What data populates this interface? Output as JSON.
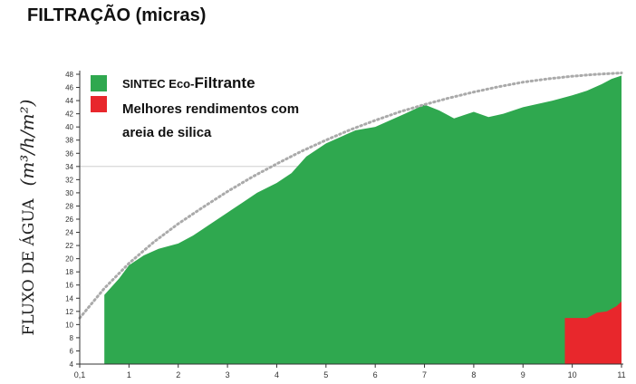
{
  "chart_data": {
    "type": "area",
    "title": "FILTRAÇÃO (micras)",
    "ylabel_prefix": "FLUXO DE ÁGUA",
    "ylabel_unit": "(m³/h/m²)",
    "x_ticks": [
      "0,1",
      "1",
      "2",
      "3",
      "4",
      "5",
      "6",
      "7",
      "8",
      "9",
      "10",
      "11"
    ],
    "y_ticks": [
      "4",
      "6",
      "8",
      "10",
      "12",
      "14",
      "16",
      "18",
      "20",
      "22",
      "24",
      "26",
      "28",
      "30",
      "32",
      "34",
      "36",
      "38",
      "40",
      "42",
      "44",
      "46",
      "48"
    ],
    "xlim": [
      0,
      11
    ],
    "ylim": [
      4,
      48
    ],
    "legend": [
      {
        "label_small": "SINTEC Eco-",
        "label_big": "Filtrante",
        "color": "#2fa84f"
      },
      {
        "label_line1": "Melhores rendimentos com",
        "label_line2": "areia de silica",
        "color": "#e8272c"
      }
    ],
    "series": [
      {
        "name": "SINTEC Eco-Filtrante",
        "color": "#2fa84f",
        "x": [
          0.5,
          0.8,
          1,
          1.3,
          1.6,
          2,
          2.3,
          2.6,
          3,
          3.3,
          3.6,
          4,
          4.3,
          4.6,
          5,
          5.3,
          5.6,
          6,
          6.3,
          6.6,
          7,
          7.3,
          7.6,
          8,
          8.3,
          8.6,
          9,
          9.3,
          9.6,
          10,
          10.3,
          10.6,
          10.8,
          11
        ],
        "y": [
          14.5,
          17,
          19,
          20.5,
          21.5,
          22.3,
          23.5,
          25,
          27,
          28.5,
          30,
          31.5,
          33,
          35.5,
          37.5,
          38.5,
          39.5,
          40,
          41,
          42,
          43.4,
          42.5,
          41.3,
          42.3,
          41.5,
          42,
          43,
          43.5,
          44,
          44.8,
          45.5,
          46.5,
          47.3,
          47.8
        ]
      },
      {
        "name": "Melhores rendimentos com areia de silica",
        "color": "#e8272c",
        "x": [
          9.85,
          10,
          10.3,
          10.5,
          10.7,
          10.9,
          11
        ],
        "y": [
          11,
          11,
          11,
          11.8,
          12,
          12.8,
          13.5
        ]
      },
      {
        "name": "curve",
        "style": "dotted",
        "color": "#aaaaaa",
        "x": [
          0,
          0.5,
          1,
          1.5,
          2,
          2.5,
          3,
          3.5,
          4,
          4.5,
          5,
          5.5,
          6,
          6.5,
          7,
          7.5,
          8,
          8.5,
          9,
          9.5,
          10,
          10.5,
          11
        ],
        "y": [
          11,
          15.5,
          19.3,
          22.5,
          25.3,
          27.8,
          30.2,
          32.4,
          34.4,
          36.3,
          38,
          39.6,
          41,
          42.3,
          43.4,
          44.4,
          45.3,
          46.1,
          46.8,
          47.3,
          47.7,
          48,
          48.2
        ]
      }
    ],
    "reference_line_y": 34,
    "grid": false
  }
}
